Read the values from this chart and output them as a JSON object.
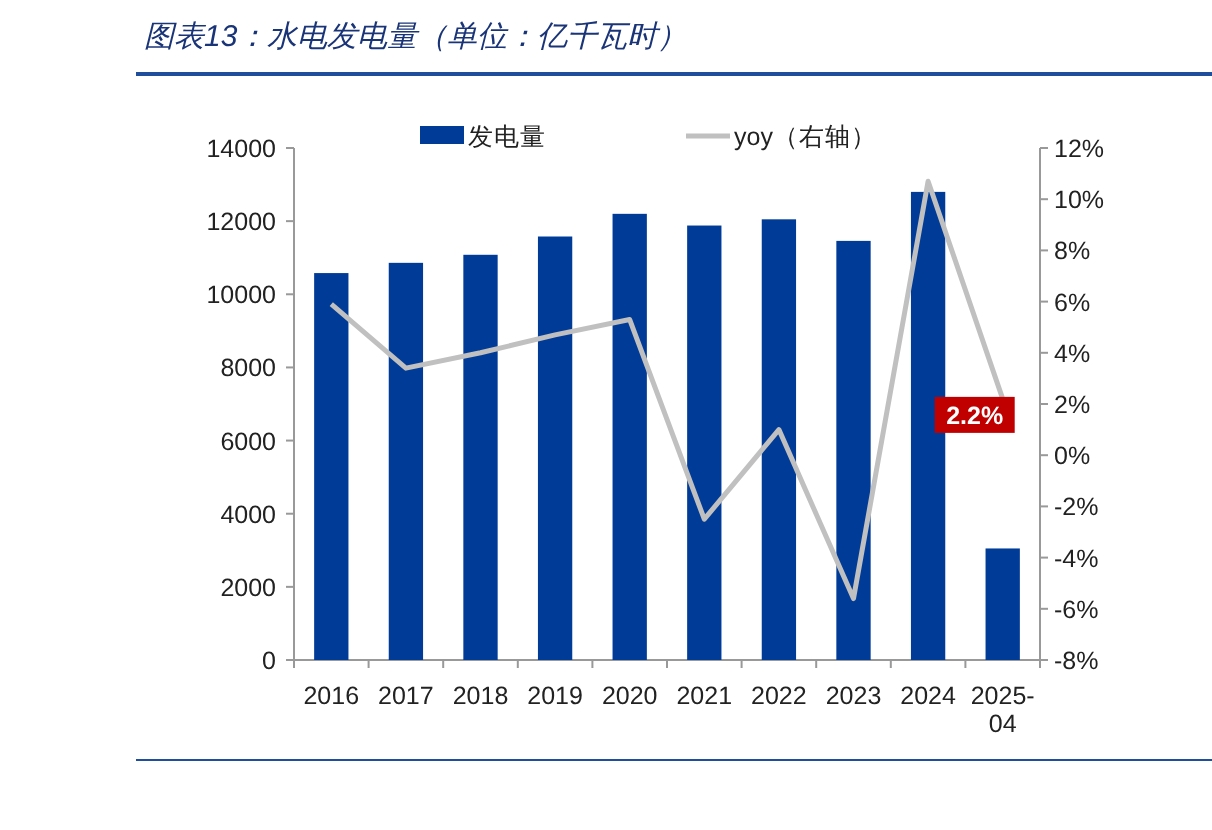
{
  "chart_data": {
    "type": "bar",
    "title": "图表13：水电发电量（单位：亿千瓦时）",
    "categories": [
      "2016",
      "2017",
      "2018",
      "2019",
      "2020",
      "2021",
      "2022",
      "2023",
      "2024",
      "2025-\n04"
    ],
    "series": [
      {
        "name": "发电量",
        "color": "#003c97",
        "values": [
          10580,
          10860,
          11080,
          11580,
          12200,
          11880,
          12050,
          11460,
          12800,
          3050
        ]
      },
      {
        "name": "yoy（右轴）",
        "type": "line",
        "axis": "y2",
        "color": "#c0c0c0",
        "values": [
          5.9,
          3.4,
          4.0,
          4.7,
          5.3,
          -2.5,
          1.0,
          -5.6,
          10.7,
          2.2
        ]
      }
    ],
    "ylim": [
      0,
      14000
    ],
    "yticks": [
      0,
      2000,
      4000,
      6000,
      8000,
      10000,
      12000,
      14000
    ],
    "y2lim": [
      -8,
      12
    ],
    "y2ticks": [
      {
        "value": -8,
        "label": "-8%"
      },
      {
        "value": -6,
        "label": "-6%"
      },
      {
        "value": -4,
        "label": "-4%"
      },
      {
        "value": -2,
        "label": "-2%"
      },
      {
        "value": 0,
        "label": "0%"
      },
      {
        "value": 2,
        "label": "2%"
      },
      {
        "value": 4,
        "label": "4%"
      },
      {
        "value": 6,
        "label": "6%"
      },
      {
        "value": 8,
        "label": "8%"
      },
      {
        "value": 10,
        "label": "10%"
      },
      {
        "value": 12,
        "label": "12%"
      }
    ],
    "annotations": [
      "2.2%"
    ],
    "legend": "top",
    "grid": false,
    "marker": "none",
    "line_style": "solid"
  }
}
